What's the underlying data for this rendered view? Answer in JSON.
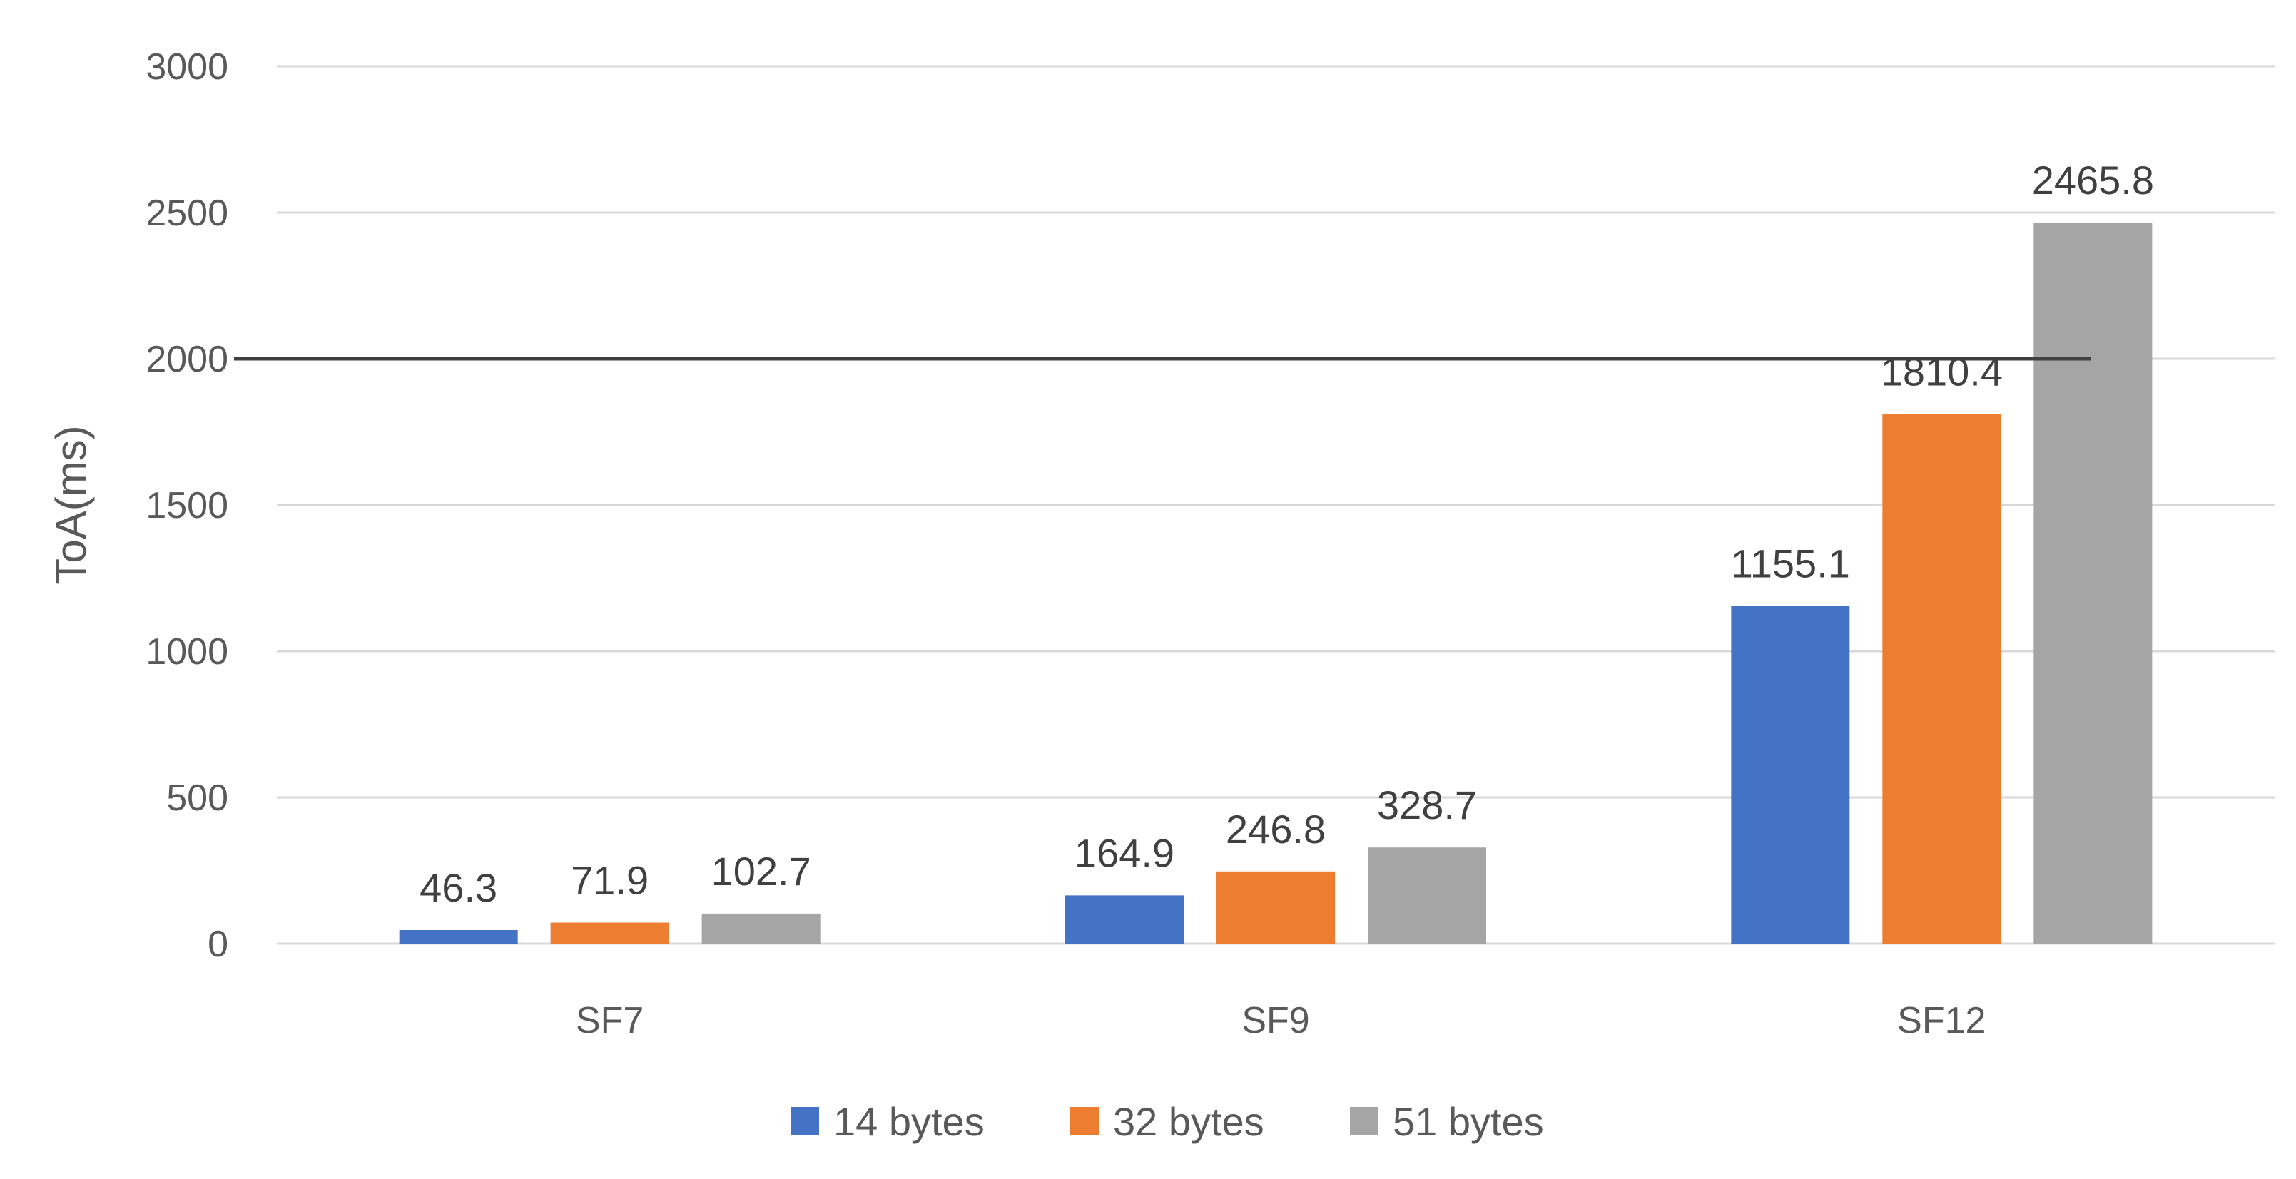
{
  "chart_data": {
    "type": "bar",
    "categories": [
      "SF7",
      "SF9",
      "SF12"
    ],
    "series": [
      {
        "name": "14 bytes",
        "values": [
          46.3,
          164.9,
          1155.1
        ],
        "color": "#4472C4"
      },
      {
        "name": "32 bytes",
        "values": [
          71.9,
          246.8,
          1810.4
        ],
        "color": "#ED7D31"
      },
      {
        "name": "51 bytes",
        "values": [
          102.7,
          328.7,
          2465.8
        ],
        "color": "#A5A5A5"
      }
    ],
    "data_labels": [
      [
        "46.3",
        "164.9",
        "1155.1"
      ],
      [
        "71.9",
        "246.8",
        "1810.4"
      ],
      [
        "102.7",
        "328.7",
        "2465.8"
      ]
    ],
    "ylabel": "ToA(ms)",
    "ylim": [
      0,
      3000
    ],
    "yticks": [
      0,
      500,
      1000,
      1500,
      2000,
      2500,
      3000
    ],
    "ytick_labels": [
      "0",
      "500",
      "1000",
      "1500",
      "2000",
      "2500",
      "3000"
    ],
    "reference_line": {
      "y": 2000,
      "color": "#404040"
    },
    "grid": true,
    "grid_color": "#D9D9D9",
    "legend_position": "bottom"
  }
}
